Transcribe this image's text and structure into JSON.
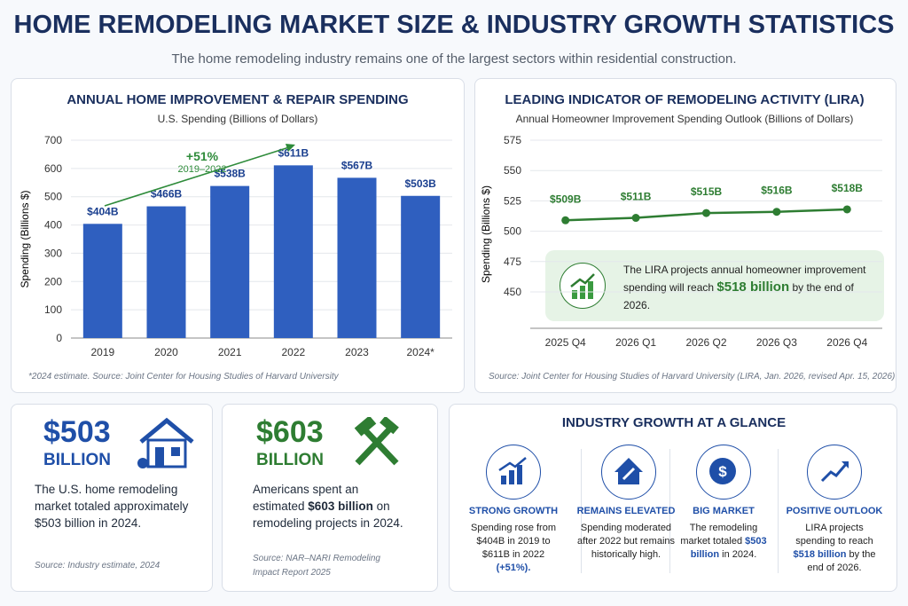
{
  "header": {
    "title": "HOME REMODELING MARKET SIZE & INDUSTRY GROWTH STATISTICS",
    "subtitle": "The home remodeling industry remains one of the largest sectors within residential construction."
  },
  "chart_data": [
    {
      "type": "bar",
      "title": "ANNUAL HOME IMPROVEMENT & REPAIR SPENDING",
      "subtitle": "U.S. Spending (Billions of Dollars)",
      "y_label": "Spending (Billions $)",
      "categories": [
        "2019",
        "2020",
        "2021",
        "2022",
        "2023",
        "2024*"
      ],
      "values": [
        404,
        466,
        538,
        611,
        567,
        503
      ],
      "value_labels": [
        "$404B",
        "$466B",
        "$538B",
        "$611B",
        "$567B",
        "$503B"
      ],
      "color": "#2f5fbf",
      "ylim": [
        0,
        700
      ],
      "yticks": [
        0,
        100,
        200,
        300,
        400,
        500,
        600,
        700
      ],
      "grid": true,
      "annotation": "+51%",
      "annotation_sub": "2019–2022",
      "source": "*2024 estimate. Source: Joint Center for Housing Studies of Harvard University"
    },
    {
      "type": "line",
      "title": "LEADING INDICATOR OF REMODELING ACTIVITY (LIRA)",
      "subtitle": "Annual Homeowner Improvement Spending Outlook (Billions of Dollars)",
      "y_label": "Spending (Billions $)",
      "categories": [
        "2025 Q4",
        "2026 Q1",
        "2026 Q2",
        "2026 Q3",
        "2026 Q4"
      ],
      "values": [
        509,
        511,
        515,
        516,
        518
      ],
      "value_labels": [
        "$509B",
        "$511B",
        "$515B",
        "$516B",
        "$518B"
      ],
      "color": "#2e7d32",
      "ylim": [
        420,
        575
      ],
      "yticks": [
        450,
        475,
        500,
        525,
        550,
        575
      ],
      "grid": true,
      "callout": {
        "before": "The LIRA projects annual homeowner improvement spending will reach",
        "highlight": "$518 billion",
        "after": "by the end of 2026."
      },
      "source": "Source: Joint Center for Housing Studies of Harvard University (LIRA, Jan. 2026, revised Apr. 15, 2026)"
    }
  ],
  "cards": [
    {
      "value": "$503",
      "unit": "BILLION",
      "text": "The U.S. home remodeling market totaled approximately $503 billion in 2024.",
      "source": "Source: Industry estimate, 2024"
    },
    {
      "value": "$603",
      "unit": "BILLION",
      "before": "Americans spent an estimated",
      "highlight": "$603 billion",
      "after": "on remodeling projects in 2024.",
      "source": "Source: NAR–NARI Remodeling Impact Report 2025"
    }
  ],
  "glance": {
    "title": "INDUSTRY GROWTH AT A GLANCE",
    "items": [
      {
        "title": "STRONG GROWTH",
        "before": "Spending rose from $404B in 2019 to $611B in 2022",
        "highlight": "(+51%)."
      },
      {
        "title": "REMAINS ELEVATED",
        "before": "Spending moderated after 2022 but remains historically high."
      },
      {
        "title": "BIG MARKET",
        "before": "The remodeling market totaled",
        "highlight": "$503 billion",
        "after": "in 2024."
      },
      {
        "title": "POSITIVE OUTLOOK",
        "before": "LIRA projects spending to reach",
        "highlight": "$518 billion",
        "after": "by the end of 2026."
      }
    ]
  }
}
